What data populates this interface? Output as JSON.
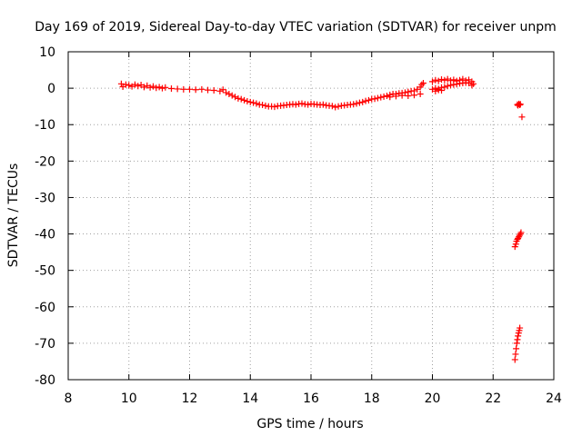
{
  "chart_data": {
    "type": "scatter",
    "title": "Day 169 of 2019, Sidereal Day-to-day VTEC variation (SDTVAR) for receiver unpm",
    "xlabel": "GPS time / hours",
    "ylabel": "SDTVAR / TECUs",
    "xlim": [
      8,
      24
    ],
    "ylim": [
      -80,
      10
    ],
    "xticks": [
      8,
      10,
      12,
      14,
      16,
      18,
      20,
      22,
      24
    ],
    "yticks": [
      10,
      0,
      -10,
      -20,
      -30,
      -40,
      -50,
      -60,
      -70,
      -80
    ],
    "grid": true,
    "marker": "plus",
    "color": "#ff0000",
    "series": [
      {
        "points": [
          [
            9.75,
            1.2
          ],
          [
            9.8,
            0.4
          ],
          [
            9.9,
            1.0
          ],
          [
            10.0,
            0.8
          ],
          [
            10.1,
            0.5
          ],
          [
            10.2,
            1.0
          ],
          [
            10.3,
            0.6
          ],
          [
            10.4,
            0.9
          ],
          [
            10.5,
            0.3
          ],
          [
            10.6,
            0.7
          ],
          [
            10.7,
            0.2
          ],
          [
            10.8,
            0.5
          ],
          [
            10.9,
            0.1
          ],
          [
            11.0,
            0.3
          ],
          [
            11.1,
            0.0
          ],
          [
            11.2,
            0.2
          ],
          [
            11.4,
            -0.1
          ],
          [
            11.6,
            -0.2
          ],
          [
            11.8,
            -0.3
          ],
          [
            12.0,
            -0.3
          ],
          [
            12.2,
            -0.4
          ],
          [
            12.4,
            -0.3
          ],
          [
            12.6,
            -0.5
          ],
          [
            12.8,
            -0.6
          ],
          [
            13.0,
            -0.8
          ],
          [
            13.1,
            -0.4
          ],
          [
            13.2,
            -1.2
          ],
          [
            13.3,
            -1.6
          ],
          [
            13.4,
            -2.0
          ],
          [
            13.5,
            -2.4
          ],
          [
            13.6,
            -2.8
          ],
          [
            13.7,
            -3.0
          ],
          [
            13.8,
            -3.3
          ],
          [
            13.9,
            -3.6
          ],
          [
            14.0,
            -3.8
          ],
          [
            14.1,
            -4.0
          ],
          [
            14.2,
            -4.2
          ],
          [
            14.3,
            -4.5
          ],
          [
            14.4,
            -4.6
          ],
          [
            14.5,
            -4.8
          ],
          [
            14.6,
            -5.0
          ],
          [
            14.7,
            -5.0
          ],
          [
            14.8,
            -5.1
          ],
          [
            14.9,
            -4.9
          ],
          [
            15.0,
            -4.8
          ],
          [
            15.1,
            -4.7
          ],
          [
            15.2,
            -4.6
          ],
          [
            15.3,
            -4.5
          ],
          [
            15.4,
            -4.4
          ],
          [
            15.5,
            -4.5
          ],
          [
            15.6,
            -4.3
          ],
          [
            15.7,
            -4.2
          ],
          [
            15.8,
            -4.4
          ],
          [
            15.9,
            -4.5
          ],
          [
            16.0,
            -4.3
          ],
          [
            16.1,
            -4.4
          ],
          [
            16.2,
            -4.5
          ],
          [
            16.3,
            -4.6
          ],
          [
            16.4,
            -4.5
          ],
          [
            16.5,
            -4.7
          ],
          [
            16.6,
            -4.8
          ],
          [
            16.7,
            -4.9
          ],
          [
            16.8,
            -5.2
          ],
          [
            16.9,
            -5.0
          ],
          [
            17.0,
            -4.8
          ],
          [
            17.1,
            -4.7
          ],
          [
            17.2,
            -4.6
          ],
          [
            17.3,
            -4.5
          ],
          [
            17.4,
            -4.4
          ],
          [
            17.5,
            -4.2
          ],
          [
            17.6,
            -4.0
          ],
          [
            17.7,
            -3.8
          ],
          [
            17.8,
            -3.5
          ],
          [
            17.9,
            -3.3
          ],
          [
            18.0,
            -3.0
          ],
          [
            18.1,
            -2.9
          ],
          [
            18.2,
            -2.7
          ],
          [
            18.3,
            -2.5
          ],
          [
            18.4,
            -2.3
          ],
          [
            18.5,
            -2.1
          ],
          [
            18.6,
            -1.8
          ],
          [
            18.7,
            -1.6
          ],
          [
            18.8,
            -1.6
          ],
          [
            18.9,
            -1.4
          ],
          [
            19.0,
            -1.3
          ],
          [
            19.1,
            -1.2
          ],
          [
            19.2,
            -1.0
          ],
          [
            19.3,
            -0.8
          ],
          [
            19.4,
            -0.7
          ],
          [
            19.5,
            -0.3
          ],
          [
            19.6,
            0.3
          ],
          [
            19.65,
            1.0
          ],
          [
            19.7,
            1.4
          ],
          [
            18.6,
            -2.4
          ],
          [
            18.8,
            -2.2
          ],
          [
            19.0,
            -2.0
          ],
          [
            19.2,
            -2.1
          ],
          [
            19.4,
            -1.9
          ],
          [
            19.6,
            -1.6
          ],
          [
            20.0,
            1.8
          ],
          [
            20.1,
            2.2
          ],
          [
            20.2,
            2.0
          ],
          [
            20.3,
            2.4
          ],
          [
            20.4,
            2.2
          ],
          [
            20.5,
            2.5
          ],
          [
            20.6,
            2.1
          ],
          [
            20.7,
            2.3
          ],
          [
            20.8,
            2.0
          ],
          [
            20.9,
            2.2
          ],
          [
            21.0,
            2.5
          ],
          [
            21.1,
            2.1
          ],
          [
            21.2,
            2.3
          ],
          [
            21.3,
            1.8
          ],
          [
            21.35,
            1.2
          ],
          [
            20.0,
            -0.3
          ],
          [
            20.1,
            0.0
          ],
          [
            20.2,
            -0.2
          ],
          [
            20.3,
            0.2
          ],
          [
            20.4,
            0.3
          ],
          [
            20.5,
            0.6
          ],
          [
            20.6,
            0.8
          ],
          [
            20.7,
            1.0
          ],
          [
            20.8,
            1.1
          ],
          [
            20.9,
            1.3
          ],
          [
            21.0,
            1.4
          ],
          [
            21.1,
            1.5
          ],
          [
            21.2,
            1.4
          ],
          [
            21.3,
            0.8
          ],
          [
            20.1,
            -0.8
          ],
          [
            20.2,
            -0.5
          ],
          [
            20.3,
            -0.6
          ],
          [
            22.8,
            -4.5
          ],
          [
            22.82,
            -4.7
          ],
          [
            22.85,
            -4.3
          ],
          [
            22.88,
            -4.6
          ],
          [
            22.9,
            -4.4
          ],
          [
            22.95,
            -7.9
          ],
          [
            22.72,
            -43.5
          ],
          [
            22.75,
            -42.8
          ],
          [
            22.77,
            -42.0
          ],
          [
            22.8,
            -41.5
          ],
          [
            22.82,
            -41.2
          ],
          [
            22.85,
            -40.8
          ],
          [
            22.87,
            -40.4
          ],
          [
            22.9,
            -40.0
          ],
          [
            22.92,
            -39.6
          ],
          [
            22.72,
            -74.5
          ],
          [
            22.74,
            -73.0
          ],
          [
            22.76,
            -71.5
          ],
          [
            22.78,
            -70.0
          ],
          [
            22.8,
            -69.0
          ],
          [
            22.82,
            -68.0
          ],
          [
            22.84,
            -67.2
          ],
          [
            22.86,
            -66.5
          ],
          [
            22.88,
            -65.8
          ]
        ]
      }
    ]
  }
}
